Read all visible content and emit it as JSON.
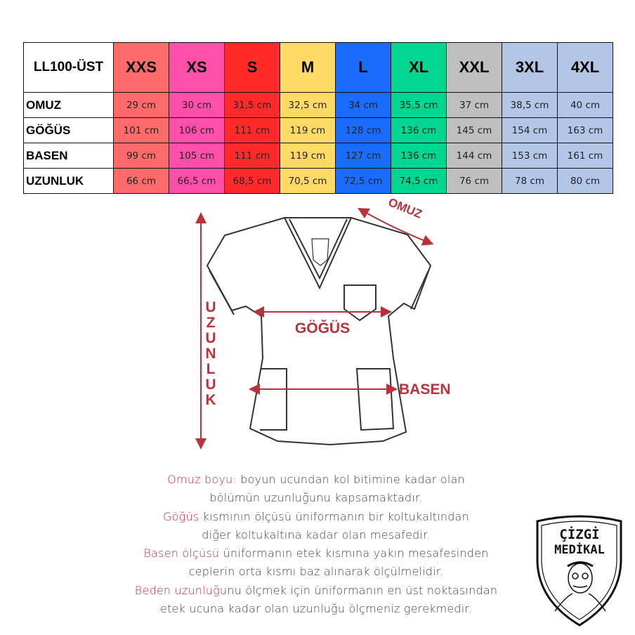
{
  "table": {
    "model": "LL100-ÜST",
    "sizes": [
      {
        "label": "XXS",
        "color": "#ff6b6b"
      },
      {
        "label": "XS",
        "color": "#ff4fa8"
      },
      {
        "label": "S",
        "color": "#ff2b2b"
      },
      {
        "label": "M",
        "color": "#ffd966"
      },
      {
        "label": "L",
        "color": "#1a6cff"
      },
      {
        "label": "XL",
        "color": "#00d68f"
      },
      {
        "label": "XXL",
        "color": "#bfbfbf"
      },
      {
        "label": "3XL",
        "color": "#b4c6e7"
      },
      {
        "label": "4XL",
        "color": "#b4c6e7"
      }
    ],
    "rows": [
      {
        "label": "OMUZ",
        "values": [
          "29 cm",
          "30 cm",
          "31,5 cm",
          "32,5 cm",
          "34 cm",
          "35,5 cm",
          "37 cm",
          "38,5 cm",
          "40 cm"
        ]
      },
      {
        "label": "GÖĞÜS",
        "values": [
          "101 cm",
          "106 cm",
          "111 cm",
          "119 cm",
          "128 cm",
          "136 cm",
          "145 cm",
          "154 cm",
          "163 cm"
        ]
      },
      {
        "label": "BASEN",
        "values": [
          "99 cm",
          "105 cm",
          "111 cm",
          "119 cm",
          "127 cm",
          "136 cm",
          "144 cm",
          "153 cm",
          "161 cm"
        ]
      },
      {
        "label": "UZUNLUK",
        "values": [
          "66 cm",
          "66,5 cm",
          "68,5 cm",
          "70,5 cm",
          "72,5 cm",
          "74,5 cm",
          "76 cm",
          "78 cm",
          "80 cm"
        ]
      }
    ]
  },
  "diagram": {
    "omuz": "OMUZ",
    "gogus": "GÖĞÜS",
    "basen": "BASEN",
    "uzunluk": "UZUNLUK",
    "accent": "#b8323a"
  },
  "description": [
    {
      "hl": "Omuz boyu:",
      "text": " boyun ucundan kol bitimine kadar olan"
    },
    {
      "hl": "",
      "text": "bölümün uzunluğunu kapsamaktadır."
    },
    {
      "hl": "Göğüs",
      "text": " kısmının ölçüsü üniformanın bir koltukaltından"
    },
    {
      "hl": "",
      "text": "diğer koltukaltına kadar olan mesafedir."
    },
    {
      "hl": "Basen ölçüsü",
      "text": " üniformanın etek kısmına yakın mesafesinden"
    },
    {
      "hl": "",
      "text": "ceplerin orta kısmı baz alınarak ölçülmelidir."
    },
    {
      "hl": "Beden uzunluğu",
      "text": "nu ölçmek için üniformanın en üst noktasından"
    },
    {
      "hl": "",
      "text": "etek ucuna kadar olan uzunluğu ölçmeniz gerekmedir."
    }
  ],
  "logo": {
    "line1": "ÇİZGİ",
    "line2": "MEDİKAL"
  }
}
